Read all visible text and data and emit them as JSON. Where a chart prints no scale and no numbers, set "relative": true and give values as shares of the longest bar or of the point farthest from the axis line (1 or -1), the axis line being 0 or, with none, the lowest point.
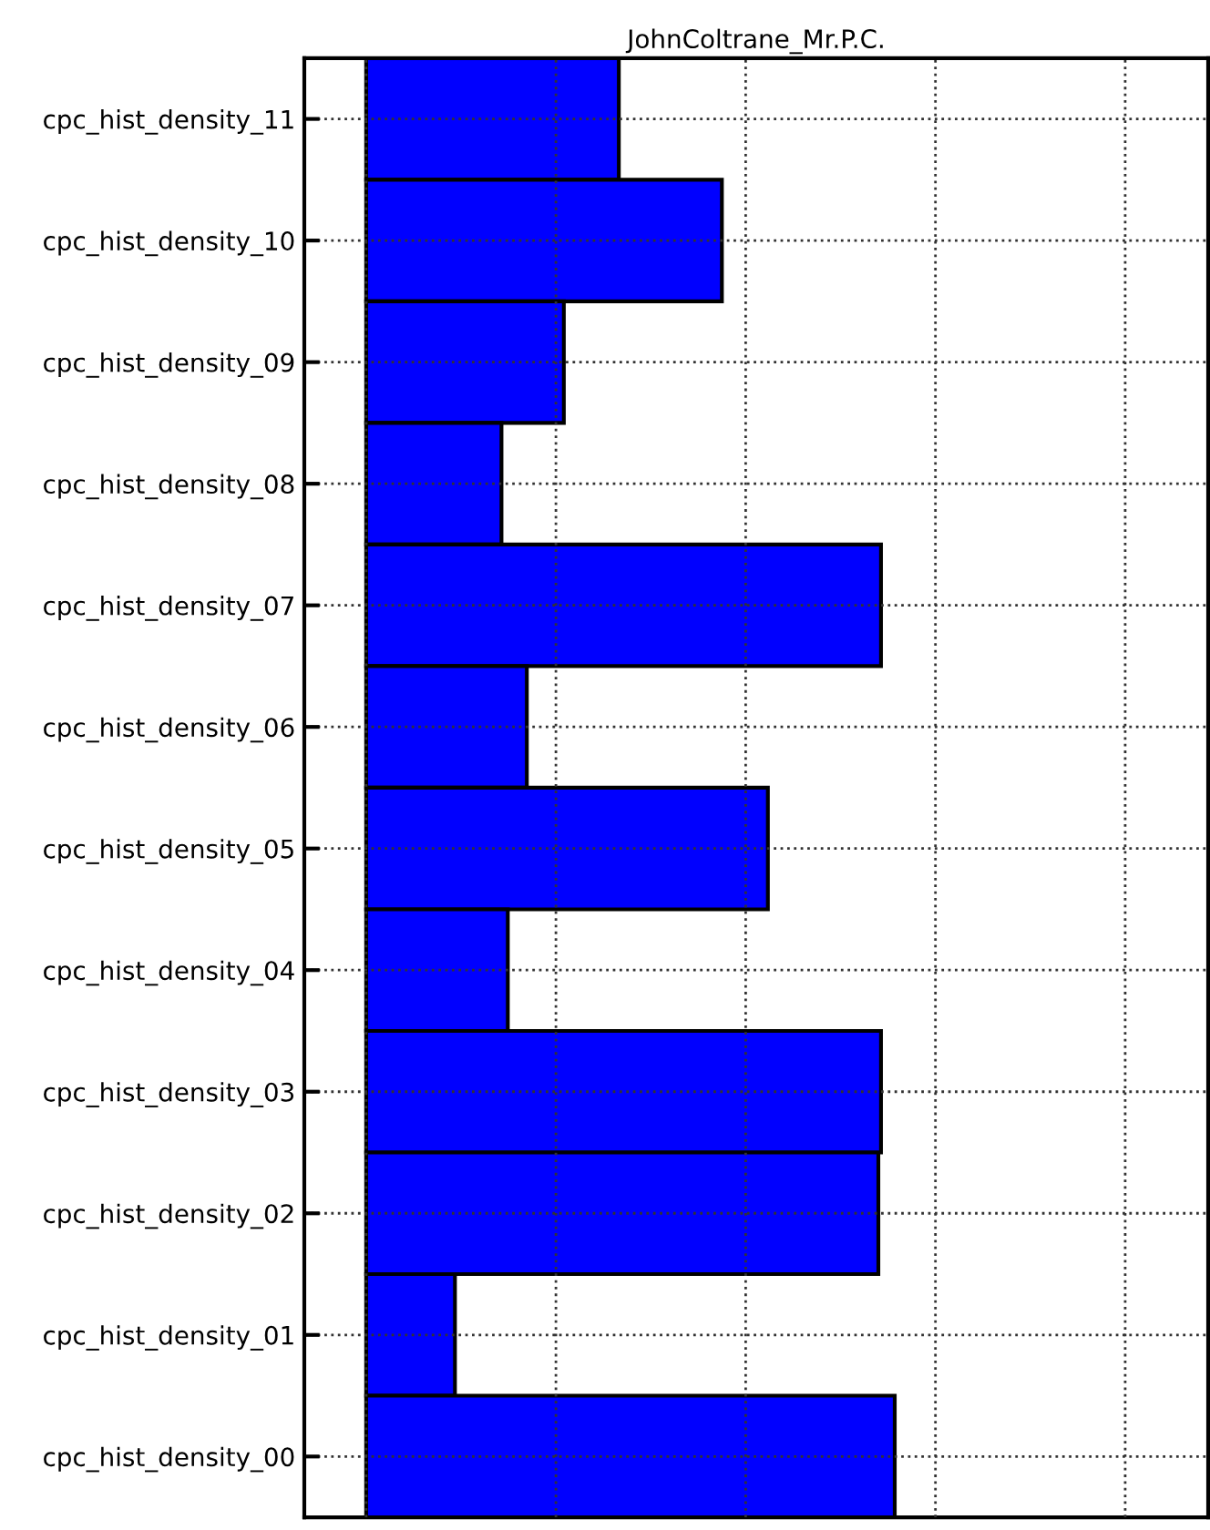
{
  "chart_data": {
    "type": "bar",
    "orientation": "horizontal",
    "relative": true,
    "title": "JohnColtrane_Mr.P.C.",
    "categories": [
      "cpc_hist_density_11",
      "cpc_hist_density_10",
      "cpc_hist_density_09",
      "cpc_hist_density_08",
      "cpc_hist_density_07",
      "cpc_hist_density_06",
      "cpc_hist_density_05",
      "cpc_hist_density_04",
      "cpc_hist_density_03",
      "cpc_hist_density_02",
      "cpc_hist_density_01",
      "cpc_hist_density_00"
    ],
    "values": [
      0.478,
      0.673,
      0.374,
      0.256,
      0.974,
      0.304,
      0.76,
      0.268,
      0.974,
      0.969,
      0.168,
      1
    ],
    "color": "#0000ff",
    "grid": true,
    "line_style": "dotted",
    "tick_labels": "y"
  }
}
